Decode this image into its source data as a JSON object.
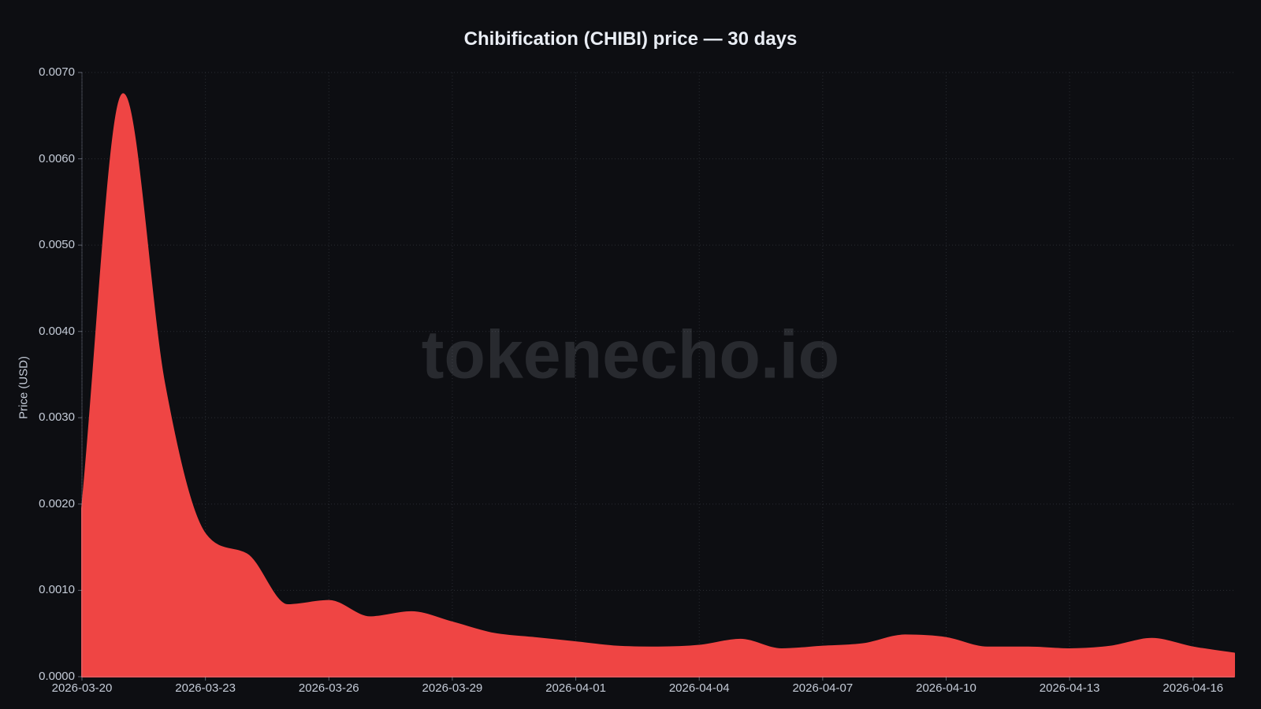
{
  "title": "Chibification (CHIBI) price — 30 days",
  "watermark": "tokenecho.io",
  "axes": {
    "y_label": "Price (USD)",
    "y_ticks": [
      "0.0070",
      "0.0060",
      "0.0050",
      "0.0040",
      "0.0030",
      "0.0020",
      "0.0010",
      "0.0000"
    ],
    "x_ticks": [
      "2026-03-20",
      "2026-03-23",
      "2026-03-26",
      "2026-03-29",
      "2026-04-01",
      "2026-04-04",
      "2026-04-07",
      "2026-04-10",
      "2026-04-13",
      "2026-04-16"
    ]
  },
  "colors": {
    "background": "#0d0e12",
    "series_fill": "#ef4544",
    "grid": "rgba(173,181,200,0.18)",
    "spine": "rgba(173,181,200,0.32)",
    "tick_mark": "rgba(173,181,200,0.5)",
    "tick_text": "#c4cbd7",
    "title_text": "#e9edf4",
    "watermark_text": "rgba(203,210,226,0.14)"
  },
  "chart_data": {
    "type": "area",
    "title": "Chibification (CHIBI) price — 30 days",
    "xlabel": "",
    "ylabel": "Price (USD)",
    "ylim": [
      0,
      0.007
    ],
    "grid": true,
    "legend": "none",
    "smoothing": "spline",
    "x": [
      "2026-03-20",
      "2026-03-21",
      "2026-03-22",
      "2026-03-23",
      "2026-03-24",
      "2026-03-25",
      "2026-03-26",
      "2026-03-27",
      "2026-03-28",
      "2026-03-29",
      "2026-03-30",
      "2026-03-31",
      "2026-04-01",
      "2026-04-02",
      "2026-04-03",
      "2026-04-04",
      "2026-04-05",
      "2026-04-06",
      "2026-04-07",
      "2026-04-08",
      "2026-04-09",
      "2026-04-10",
      "2026-04-11",
      "2026-04-12",
      "2026-04-13",
      "2026-04-14",
      "2026-04-15",
      "2026-04-16",
      "2026-04-17"
    ],
    "values": [
      0.00195,
      0.00675,
      0.0034,
      0.00165,
      0.00142,
      0.00083,
      0.00088,
      0.00069,
      0.00075,
      0.00063,
      0.0005,
      0.00045,
      0.0004,
      0.00035,
      0.00034,
      0.00036,
      0.00043,
      0.00032,
      0.00035,
      0.00038,
      0.00048,
      0.00045,
      0.00034,
      0.00034,
      0.00032,
      0.00035,
      0.00044,
      0.00034,
      0.00027
    ]
  }
}
